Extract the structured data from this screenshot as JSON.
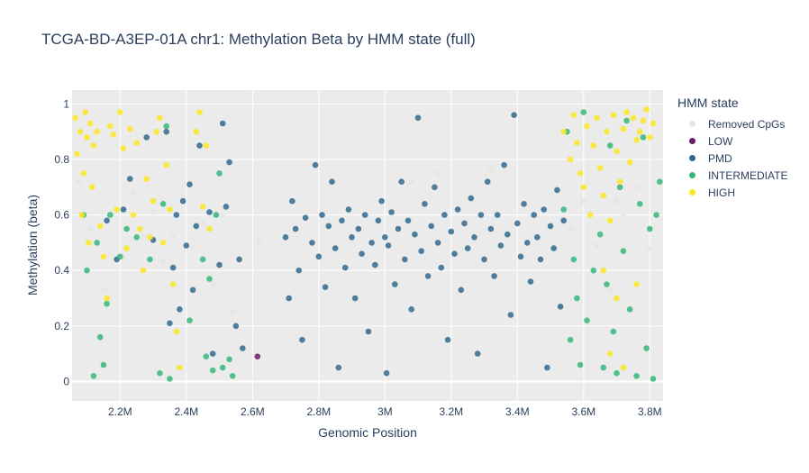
{
  "chart_data": {
    "type": "scatter",
    "title": "TCGA-BD-A3EP-01A chr1: Methylation Beta by HMM state (full)",
    "xlabel": "Genomic Position",
    "ylabel": "Methylation (beta)",
    "xlim": [
      2055000,
      3840000
    ],
    "ylim": [
      -0.07,
      1.05
    ],
    "xticks": [
      {
        "value": 2200000,
        "label": "2.2M"
      },
      {
        "value": 2400000,
        "label": "2.4M"
      },
      {
        "value": 2600000,
        "label": "2.6M"
      },
      {
        "value": 2800000,
        "label": "2.8M"
      },
      {
        "value": 3000000,
        "label": "3M"
      },
      {
        "value": 3200000,
        "label": "3.2M"
      },
      {
        "value": 3400000,
        "label": "3.4M"
      },
      {
        "value": 3600000,
        "label": "3.6M"
      },
      {
        "value": 3800000,
        "label": "3.8M"
      }
    ],
    "yticks": [
      0,
      0.2,
      0.4,
      0.6,
      0.8,
      1
    ],
    "grid": true,
    "legend_title": "HMM state",
    "legend_position": "right",
    "series": [
      {
        "name": "Removed CpGs",
        "color": "#e5e5e5",
        "points": [
          [
            2075000,
            0.72
          ],
          [
            2110000,
            0.55
          ],
          [
            2150000,
            0.33
          ],
          [
            2180000,
            0.61
          ],
          [
            2210000,
            0.45
          ],
          [
            2240000,
            0.68
          ],
          [
            2270000,
            0.52
          ],
          [
            2300000,
            0.61
          ],
          [
            2330000,
            0.43
          ],
          [
            2360000,
            0.52
          ],
          [
            2390000,
            0.66
          ],
          [
            2420000,
            0.48
          ],
          [
            2450000,
            0.57
          ],
          [
            2480000,
            0.35
          ],
          [
            2510000,
            0.6
          ],
          [
            2540000,
            0.25
          ],
          [
            2620000,
            0.5
          ],
          [
            3080000,
            0.72
          ],
          [
            3160000,
            0.75
          ],
          [
            3320000,
            0.76
          ],
          [
            3560000,
            0.55
          ],
          [
            3600000,
            0.65
          ],
          [
            3640000,
            0.49
          ],
          [
            3680000,
            0.33
          ],
          [
            3700000,
            0.65
          ],
          [
            3720000,
            0.6
          ],
          [
            3760000,
            0.7
          ],
          [
            3800000,
            0.48
          ]
        ]
      },
      {
        "name": "LOW",
        "color": "#6a1b6e",
        "points": [
          [
            2615000,
            0.09
          ]
        ]
      },
      {
        "name": "PMD",
        "color": "#31688e",
        "points": [
          [
            2160000,
            0.58
          ],
          [
            2190000,
            0.44
          ],
          [
            2210000,
            0.62
          ],
          [
            2230000,
            0.73
          ],
          [
            2280000,
            0.88
          ],
          [
            2300000,
            0.51
          ],
          [
            2340000,
            0.9
          ],
          [
            2350000,
            0.21
          ],
          [
            2360000,
            0.41
          ],
          [
            2370000,
            0.6
          ],
          [
            2380000,
            0.26
          ],
          [
            2390000,
            0.65
          ],
          [
            2400000,
            0.49
          ],
          [
            2410000,
            0.71
          ],
          [
            2420000,
            0.33
          ],
          [
            2430000,
            0.56
          ],
          [
            2440000,
            0.85
          ],
          [
            2470000,
            0.61
          ],
          [
            2480000,
            0.1
          ],
          [
            2500000,
            0.42
          ],
          [
            2510000,
            0.93
          ],
          [
            2520000,
            0.63
          ],
          [
            2530000,
            0.79
          ],
          [
            2550000,
            0.2
          ],
          [
            2560000,
            0.44
          ],
          [
            2570000,
            0.12
          ],
          [
            2700000,
            0.52
          ],
          [
            2710000,
            0.3
          ],
          [
            2720000,
            0.65
          ],
          [
            2730000,
            0.55
          ],
          [
            2740000,
            0.4
          ],
          [
            2750000,
            0.15
          ],
          [
            2760000,
            0.59
          ],
          [
            2780000,
            0.5
          ],
          [
            2790000,
            0.78
          ],
          [
            2800000,
            0.45
          ],
          [
            2810000,
            0.6
          ],
          [
            2820000,
            0.34
          ],
          [
            2830000,
            0.56
          ],
          [
            2840000,
            0.72
          ],
          [
            2850000,
            0.48
          ],
          [
            2860000,
            0.05
          ],
          [
            2870000,
            0.58
          ],
          [
            2880000,
            0.41
          ],
          [
            2890000,
            0.62
          ],
          [
            2900000,
            0.52
          ],
          [
            2910000,
            0.3
          ],
          [
            2920000,
            0.55
          ],
          [
            2930000,
            0.46
          ],
          [
            2940000,
            0.6
          ],
          [
            2950000,
            0.18
          ],
          [
            2960000,
            0.5
          ],
          [
            2970000,
            0.42
          ],
          [
            2980000,
            0.58
          ],
          [
            2990000,
            0.65
          ],
          [
            3000000,
            0.52
          ],
          [
            3005000,
            0.03
          ],
          [
            3010000,
            0.49
          ],
          [
            3020000,
            0.61
          ],
          [
            3030000,
            0.35
          ],
          [
            3040000,
            0.55
          ],
          [
            3050000,
            0.72
          ],
          [
            3060000,
            0.44
          ],
          [
            3070000,
            0.58
          ],
          [
            3080000,
            0.26
          ],
          [
            3090000,
            0.53
          ],
          [
            3100000,
            0.95
          ],
          [
            3110000,
            0.47
          ],
          [
            3120000,
            0.64
          ],
          [
            3130000,
            0.38
          ],
          [
            3140000,
            0.56
          ],
          [
            3150000,
            0.7
          ],
          [
            3160000,
            0.5
          ],
          [
            3170000,
            0.41
          ],
          [
            3180000,
            0.6
          ],
          [
            3190000,
            0.15
          ],
          [
            3200000,
            0.54
          ],
          [
            3210000,
            0.46
          ],
          [
            3220000,
            0.62
          ],
          [
            3230000,
            0.33
          ],
          [
            3240000,
            0.57
          ],
          [
            3250000,
            0.48
          ],
          [
            3260000,
            0.66
          ],
          [
            3270000,
            0.52
          ],
          [
            3280000,
            0.1
          ],
          [
            3290000,
            0.6
          ],
          [
            3300000,
            0.44
          ],
          [
            3310000,
            0.72
          ],
          [
            3320000,
            0.55
          ],
          [
            3330000,
            0.38
          ],
          [
            3340000,
            0.6
          ],
          [
            3350000,
            0.49
          ],
          [
            3360000,
            0.78
          ],
          [
            3370000,
            0.53
          ],
          [
            3380000,
            0.24
          ],
          [
            3390000,
            0.96
          ],
          [
            3400000,
            0.57
          ],
          [
            3410000,
            0.45
          ],
          [
            3420000,
            0.64
          ],
          [
            3430000,
            0.5
          ],
          [
            3440000,
            0.36
          ],
          [
            3450000,
            0.6
          ],
          [
            3460000,
            0.52
          ],
          [
            3470000,
            0.44
          ],
          [
            3480000,
            0.62
          ],
          [
            3490000,
            0.05
          ],
          [
            3500000,
            0.56
          ],
          [
            3510000,
            0.48
          ],
          [
            3520000,
            0.69
          ],
          [
            3530000,
            0.27
          ],
          [
            3540000,
            0.58
          ]
        ]
      },
      {
        "name": "INTERMEDIATE",
        "color": "#35b779",
        "points": [
          [
            2090000,
            0.6
          ],
          [
            2100000,
            0.4
          ],
          [
            2120000,
            0.02
          ],
          [
            2130000,
            0.5
          ],
          [
            2140000,
            0.16
          ],
          [
            2150000,
            0.06
          ],
          [
            2160000,
            0.28
          ],
          [
            2170000,
            0.6
          ],
          [
            2200000,
            0.45
          ],
          [
            2220000,
            0.55
          ],
          [
            2250000,
            0.52
          ],
          [
            2290000,
            0.44
          ],
          [
            2320000,
            0.03
          ],
          [
            2330000,
            0.64
          ],
          [
            2340000,
            0.92
          ],
          [
            2350000,
            0.01
          ],
          [
            2410000,
            0.22
          ],
          [
            2450000,
            0.44
          ],
          [
            2460000,
            0.09
          ],
          [
            2470000,
            0.37
          ],
          [
            2480000,
            0.04
          ],
          [
            2490000,
            0.6
          ],
          [
            2500000,
            0.75
          ],
          [
            2510000,
            0.05
          ],
          [
            2530000,
            0.08
          ],
          [
            2540000,
            0.02
          ],
          [
            3540000,
            0.62
          ],
          [
            3550000,
            0.9
          ],
          [
            3560000,
            0.15
          ],
          [
            3570000,
            0.44
          ],
          [
            3580000,
            0.3
          ],
          [
            3590000,
            0.06
          ],
          [
            3600000,
            0.97
          ],
          [
            3610000,
            0.22
          ],
          [
            3630000,
            0.4
          ],
          [
            3650000,
            0.53
          ],
          [
            3660000,
            0.05
          ],
          [
            3670000,
            0.35
          ],
          [
            3680000,
            0.85
          ],
          [
            3690000,
            0.18
          ],
          [
            3700000,
            0.03
          ],
          [
            3710000,
            0.7
          ],
          [
            3720000,
            0.47
          ],
          [
            3730000,
            0.94
          ],
          [
            3740000,
            0.26
          ],
          [
            3760000,
            0.02
          ],
          [
            3770000,
            0.64
          ],
          [
            3780000,
            0.88
          ],
          [
            3790000,
            0.12
          ],
          [
            3800000,
            0.55
          ],
          [
            3810000,
            0.01
          ],
          [
            3820000,
            0.6
          ],
          [
            3830000,
            0.72
          ]
        ]
      },
      {
        "name": "HIGH",
        "color": "#fde725",
        "points": [
          [
            2065000,
            0.95
          ],
          [
            2070000,
            0.82
          ],
          [
            2080000,
            0.9
          ],
          [
            2085000,
            0.6
          ],
          [
            2090000,
            0.75
          ],
          [
            2095000,
            0.97
          ],
          [
            2100000,
            0.88
          ],
          [
            2105000,
            0.5
          ],
          [
            2110000,
            0.93
          ],
          [
            2115000,
            0.7
          ],
          [
            2120000,
            0.85
          ],
          [
            2130000,
            0.9
          ],
          [
            2140000,
            0.56
          ],
          [
            2150000,
            0.45
          ],
          [
            2160000,
            0.3
          ],
          [
            2170000,
            0.92
          ],
          [
            2180000,
            0.89
          ],
          [
            2190000,
            0.62
          ],
          [
            2200000,
            0.97
          ],
          [
            2210000,
            0.84
          ],
          [
            2220000,
            0.48
          ],
          [
            2230000,
            0.91
          ],
          [
            2240000,
            0.6
          ],
          [
            2250000,
            0.86
          ],
          [
            2260000,
            0.55
          ],
          [
            2270000,
            0.4
          ],
          [
            2280000,
            0.73
          ],
          [
            2290000,
            0.52
          ],
          [
            2300000,
            0.65
          ],
          [
            2310000,
            0.9
          ],
          [
            2320000,
            0.95
          ],
          [
            2330000,
            0.5
          ],
          [
            2340000,
            0.78
          ],
          [
            2350000,
            0.62
          ],
          [
            2360000,
            0.35
          ],
          [
            2370000,
            0.18
          ],
          [
            2380000,
            0.05
          ],
          [
            2430000,
            0.9
          ],
          [
            2440000,
            0.97
          ],
          [
            2450000,
            0.63
          ],
          [
            2460000,
            0.85
          ],
          [
            2470000,
            0.55
          ],
          [
            3540000,
            0.9
          ],
          [
            3560000,
            0.8
          ],
          [
            3570000,
            0.96
          ],
          [
            3580000,
            0.86
          ],
          [
            3590000,
            0.75
          ],
          [
            3600000,
            0.7
          ],
          [
            3610000,
            0.92
          ],
          [
            3620000,
            0.6
          ],
          [
            3630000,
            0.85
          ],
          [
            3640000,
            0.95
          ],
          [
            3650000,
            0.77
          ],
          [
            3660000,
            0.67
          ],
          [
            3670000,
            0.9
          ],
          [
            3680000,
            0.58
          ],
          [
            3690000,
            0.96
          ],
          [
            3700000,
            0.83
          ],
          [
            3710000,
            0.72
          ],
          [
            3720000,
            0.91
          ],
          [
            3730000,
            0.97
          ],
          [
            3740000,
            0.79
          ],
          [
            3750000,
            0.95
          ],
          [
            3760000,
            0.87
          ],
          [
            3770000,
            0.9
          ],
          [
            3780000,
            0.94
          ],
          [
            3790000,
            0.98
          ],
          [
            3800000,
            0.88
          ],
          [
            3810000,
            0.93
          ],
          [
            3700000,
            0.3
          ],
          [
            3680000,
            0.1
          ],
          [
            3720000,
            0.05
          ],
          [
            3660000,
            0.4
          ],
          [
            3760000,
            0.35
          ]
        ]
      }
    ]
  }
}
